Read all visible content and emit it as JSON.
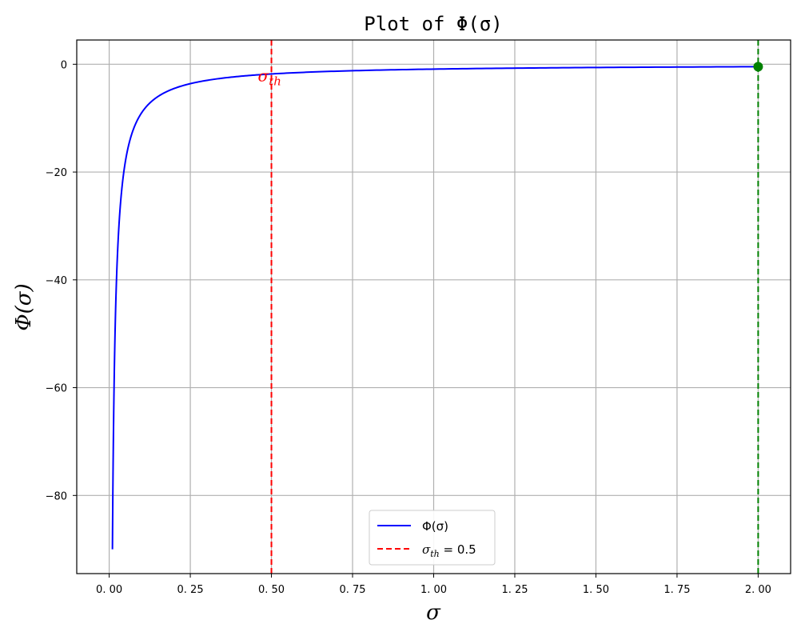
{
  "chart_data": {
    "type": "line",
    "title": "Plot of Φ(σ)",
    "xlabel": "σ",
    "ylabel": "Φ(σ)",
    "xlim": [
      -0.1,
      2.1
    ],
    "ylim": [
      -94.5,
      4.5
    ],
    "grid": true,
    "legend_position": "bottom-center",
    "xticks": [
      0.0,
      0.25,
      0.5,
      0.75,
      1.0,
      1.25,
      1.5,
      1.75,
      2.0
    ],
    "xtick_labels": [
      "0. 00",
      "0. 25",
      "0. 50",
      "0. 75",
      "1. 00",
      "1. 25",
      "1. 50",
      "1. 75",
      "2. 00"
    ],
    "yticks": [
      0,
      -20,
      -40,
      -60,
      -80
    ],
    "ytick_labels": [
      "0",
      "−20",
      "−40",
      "−60",
      "−80"
    ],
    "series": [
      {
        "name": "Φ(σ)",
        "color": "#0000ff",
        "style": "solid",
        "x": [
          0.01,
          0.0125,
          0.015,
          0.0175,
          0.02,
          0.025,
          0.03,
          0.035,
          0.04,
          0.05,
          0.06,
          0.07,
          0.08,
          0.1,
          0.12,
          0.15,
          0.2,
          0.25,
          0.3,
          0.4,
          0.5,
          0.75,
          1.0,
          1.25,
          1.5,
          1.75,
          2.0
        ],
        "y": [
          -90,
          -72,
          -60,
          -51.43,
          -45,
          -36,
          -30,
          -25.71,
          -22.5,
          -18,
          -15,
          -12.86,
          -11.25,
          -9,
          -7.5,
          -6,
          -4.5,
          -3.6,
          -3,
          -2.25,
          -1.8,
          -1.2,
          -0.9,
          -0.72,
          -0.6,
          -0.51,
          -0.45
        ]
      }
    ],
    "threshold": {
      "name": "σ_th = 0.5",
      "x": 0.5,
      "color": "#ff0000",
      "style": "dashed",
      "annotation_main": "σ",
      "annotation_sub": "th",
      "legend_main": "σ",
      "legend_sub": "th",
      "legend_value": " = 0.5"
    },
    "marker_line": {
      "x": 2.0,
      "color": "#008000",
      "style": "dashed"
    },
    "marker_point": {
      "x": 2.0,
      "y": -0.45,
      "color": "#008000"
    }
  }
}
